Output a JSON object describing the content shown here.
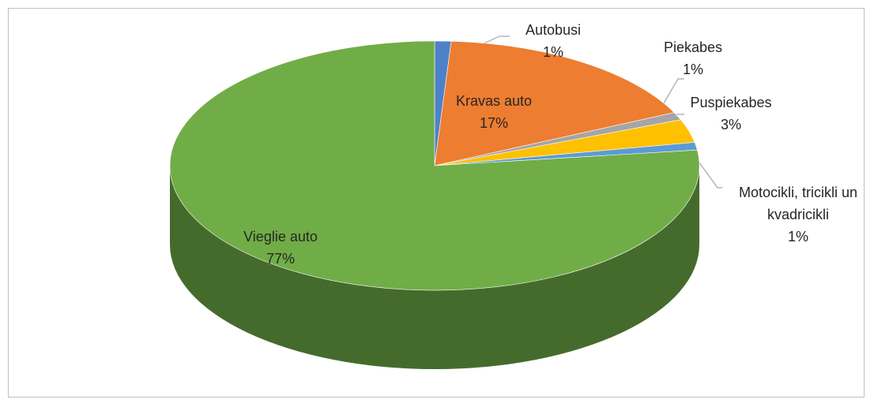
{
  "chart_data": {
    "type": "pie",
    "categories": [
      "Autobusi",
      "Kravas auto",
      "Piekabes",
      "Puspiekabes",
      "Motocikli, tricikli un kvadricikli",
      "Vieglie auto"
    ],
    "values": [
      1,
      17,
      1,
      3,
      1,
      77
    ],
    "value_labels": [
      "1%",
      "17%",
      "1%",
      "3%",
      "1%",
      "77%"
    ],
    "colors": [
      "#4f81c9",
      "#ed7d31",
      "#a5a5a5",
      "#ffc000",
      "#5b9bd5",
      "#70ad47"
    ]
  }
}
